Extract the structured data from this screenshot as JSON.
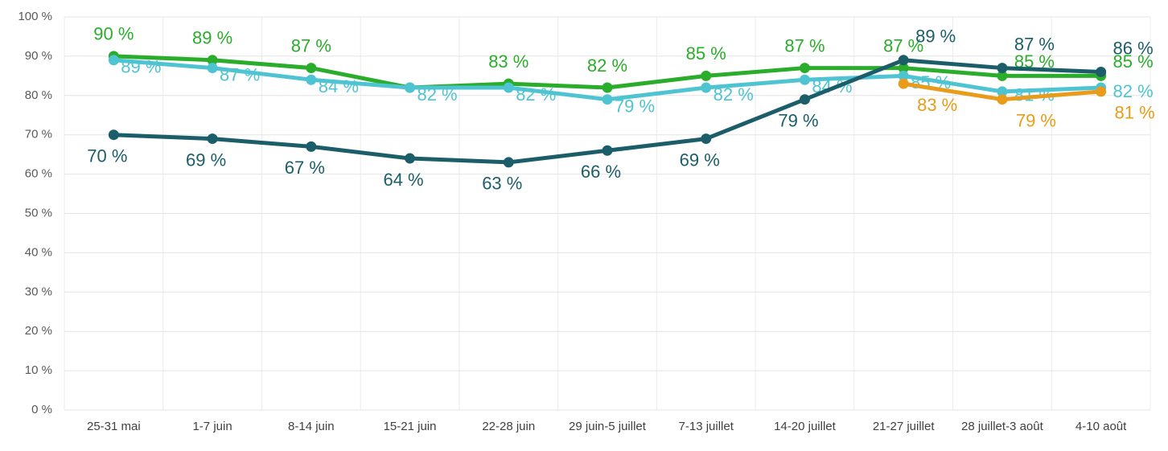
{
  "chart_data": {
    "type": "line",
    "categories": [
      "25-31 mai",
      "1-7 juin",
      "8-14 juin",
      "15-21 juin",
      "22-28 juin",
      "29 juin-5 juillet",
      "7-13 juillet",
      "14-20 juillet",
      "21-27 juillet",
      "28 juillet-3 août",
      "4-10 août"
    ],
    "ylim": [
      0,
      100
    ],
    "yticks": [
      {
        "value": 0,
        "label": "0 %"
      },
      {
        "value": 10,
        "label": "10 %"
      },
      {
        "value": 20,
        "label": "20 %"
      },
      {
        "value": 30,
        "label": "30 %"
      },
      {
        "value": 40,
        "label": "40 %"
      },
      {
        "value": 50,
        "label": "50 %"
      },
      {
        "value": 60,
        "label": "60 %"
      },
      {
        "value": 70,
        "label": "70 %"
      },
      {
        "value": 80,
        "label": "80 %"
      },
      {
        "value": 90,
        "label": "90 %"
      },
      {
        "value": 100,
        "label": "100 %"
      }
    ],
    "grid": true,
    "series": [
      {
        "color": "#2aad2a",
        "values": [
          90,
          89,
          87,
          82,
          83,
          82,
          85,
          87,
          87,
          85,
          85
        ],
        "value_labels": [
          "90 %",
          "89 %",
          "87 %",
          null,
          "83 %",
          "82 %",
          "85 %",
          "87 %",
          "87 %",
          "85 %",
          "85 %"
        ]
      },
      {
        "color": "#4ec4d3",
        "values": [
          89,
          87,
          84,
          82,
          82,
          79,
          82,
          84,
          85,
          81,
          82
        ],
        "value_labels": [
          "89 %",
          "87 %",
          "84 %",
          "82 %",
          "82 %",
          "79 %",
          "82 %",
          "84 %",
          "85 %",
          "81 %",
          "82 %"
        ]
      },
      {
        "color": "#1b5e69",
        "values": [
          70,
          69,
          67,
          64,
          63,
          66,
          69,
          79,
          89,
          87,
          86
        ],
        "value_labels": [
          "70 %",
          "69 %",
          "67 %",
          "64 %",
          "63 %",
          "66 %",
          "69 %",
          "79 %",
          "89 %",
          "87 %",
          "86 %"
        ]
      },
      {
        "color": "#e89c1a",
        "values": [
          null,
          null,
          null,
          null,
          null,
          null,
          null,
          null,
          83,
          79,
          81
        ],
        "value_labels": [
          null,
          null,
          null,
          null,
          null,
          null,
          null,
          null,
          "83 %",
          "79 %",
          "81 %"
        ]
      }
    ]
  }
}
